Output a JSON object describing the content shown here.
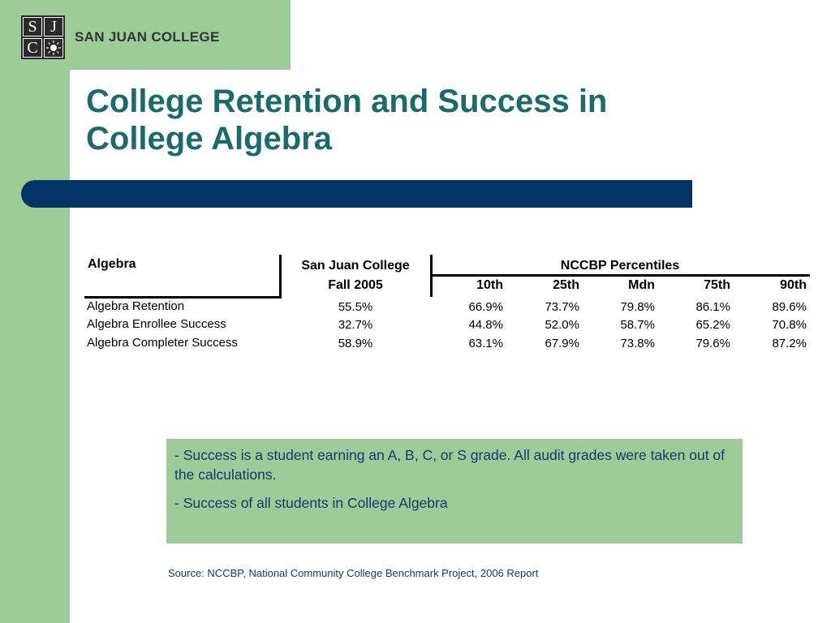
{
  "header": {
    "logo_letters": [
      "S",
      "J",
      "C"
    ],
    "logo_name": "SAN JUAN COLLEGE",
    "title_line1": "College Retention and Success in",
    "title_line2": "College Algebra"
  },
  "table": {
    "row_header_label": "Algebra",
    "sjc_label": "San Juan College",
    "sjc_sublabel": "Fall 2005",
    "nccbp_label": "NCCBP Percentiles",
    "percentile_columns": [
      "10th",
      "25th",
      "Mdn",
      "75th",
      "90th"
    ],
    "rows": [
      {
        "label": "Algebra Retention",
        "sjc": "55.5%",
        "values": [
          "66.9%",
          "73.7%",
          "79.8%",
          "86.1%",
          "89.6%"
        ]
      },
      {
        "label": "Algebra Enrollee Success",
        "sjc": "32.7%",
        "values": [
          "44.8%",
          "52.0%",
          "58.7%",
          "65.2%",
          "70.8%"
        ]
      },
      {
        "label": "Algebra Completer Success",
        "sjc": "58.9%",
        "values": [
          "63.1%",
          "67.9%",
          "73.8%",
          "79.6%",
          "87.2%"
        ]
      }
    ]
  },
  "notes": {
    "note1": "- Success is a student earning an A, B, C, or S grade.  All audit grades were taken out of the calculations.",
    "note2": "- Success of all students in College Algebra"
  },
  "source": "Source: NCCBP, National Community College Benchmark Project, 2006 Report",
  "colors": {
    "green": "#9ccc98",
    "title_teal": "#1a6b6b",
    "bar_navy": "#003366",
    "note_text": "#123a6b"
  }
}
